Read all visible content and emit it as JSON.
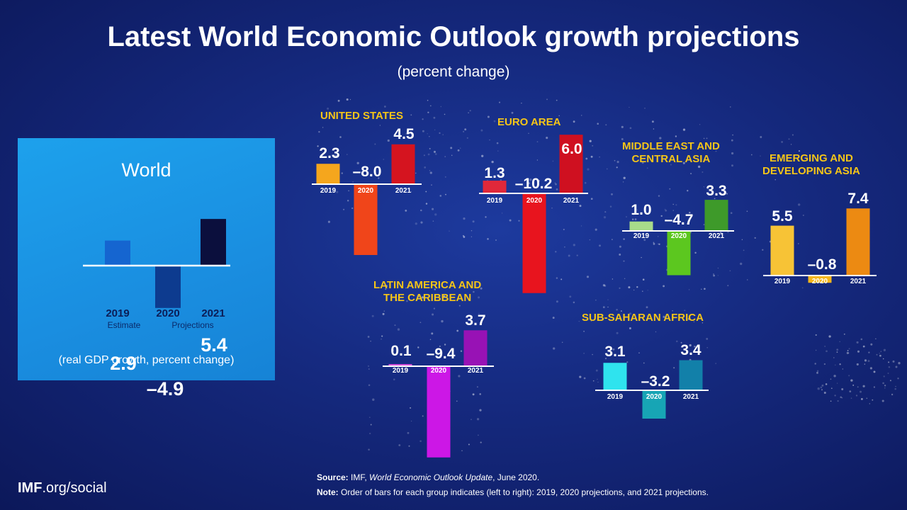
{
  "title": "Latest World Economic Outlook growth projections",
  "subtitle": "(percent change)",
  "chart_data": [
    {
      "type": "bar",
      "title": "World",
      "categories": [
        "2019",
        "2020",
        "2021"
      ],
      "category_notes": [
        "Estimate",
        "Projections",
        ""
      ],
      "values": [
        2.9,
        -4.9,
        5.4
      ],
      "value_labels": [
        "2.9",
        "–4.9",
        "5.4"
      ],
      "colors": [
        "#1565d0",
        "#0d3b8f",
        "#0b0f3d"
      ],
      "note": "(real GDP growth, percent change)"
    },
    {
      "type": "bar",
      "title": "UNITED STATES",
      "categories": [
        "2019",
        "2020",
        "2021"
      ],
      "values": [
        2.3,
        -8.0,
        4.5
      ],
      "value_labels": [
        "2.3",
        "–8.0",
        "4.5"
      ],
      "colors": [
        "#f5a61d",
        "#f0451a",
        "#d5141f"
      ]
    },
    {
      "type": "bar",
      "title": "EURO AREA",
      "categories": [
        "2019",
        "2020",
        "2021"
      ],
      "values": [
        1.3,
        -10.2,
        6.0
      ],
      "value_labels": [
        "1.3",
        "–10.2",
        "6.0"
      ],
      "colors": [
        "#e0283a",
        "#e8141e",
        "#cf1020"
      ]
    },
    {
      "type": "bar",
      "title": "MIDDLE EAST AND\nCENTRAL ASIA",
      "categories": [
        "2019",
        "2020",
        "2021"
      ],
      "values": [
        1.0,
        -4.7,
        3.3
      ],
      "value_labels": [
        "1.0",
        "–4.7",
        "3.3"
      ],
      "colors": [
        "#a8dc8a",
        "#5cc71f",
        "#3e9a2a"
      ]
    },
    {
      "type": "bar",
      "title": "EMERGING AND\nDEVELOPING ASIA",
      "categories": [
        "2019",
        "2020",
        "2021"
      ],
      "values": [
        5.5,
        -0.8,
        7.4
      ],
      "value_labels": [
        "5.5",
        "–0.8",
        "7.4"
      ],
      "colors": [
        "#f7c336",
        "#f4b61c",
        "#ec8a12"
      ]
    },
    {
      "type": "bar",
      "title": "LATIN AMERICA AND\nTHE CARIBBEAN",
      "categories": [
        "2019",
        "2020",
        "2021"
      ],
      "values": [
        0.1,
        -9.4,
        3.7
      ],
      "value_labels": [
        "0.1",
        "–9.4",
        "3.7"
      ],
      "colors": [
        "#d24ed8",
        "#cc17e6",
        "#9812b5"
      ]
    },
    {
      "type": "bar",
      "title": "SUB-SAHARAN AFRICA",
      "categories": [
        "2019",
        "2020",
        "2021"
      ],
      "values": [
        3.1,
        -3.2,
        3.4
      ],
      "value_labels": [
        "3.1",
        "–3.2",
        "3.4"
      ],
      "colors": [
        "#2fe3ee",
        "#17a5b5",
        "#1280a9"
      ]
    }
  ],
  "footer": {
    "logo_bold": "IMF",
    "logo_rest": ".org/social",
    "source_label": "Source:",
    "source_prefix": "IMF,",
    "source_title": "World Economic Outlook Update",
    "source_suffix": ", June 2020.",
    "note_label": "Note:",
    "note_text": "Order of bars for each group indicates (left to right): 2019, 2020 projections, and 2021 projections."
  },
  "colors": {
    "background": "#15297e",
    "world_box": "#1a8ee0",
    "region_title": "#f5c518",
    "text": "#ffffff"
  }
}
